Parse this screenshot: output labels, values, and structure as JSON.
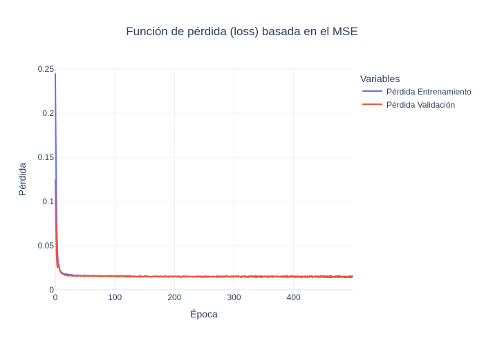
{
  "chart_data": {
    "type": "line",
    "title": "Función de pérdida (loss) basada en el MSE",
    "xlabel": "Época",
    "ylabel": "Pérdida",
    "xlim": [
      0,
      499
    ],
    "ylim": [
      0,
      0.25
    ],
    "xticks": [
      0,
      100,
      200,
      300,
      400
    ],
    "yticks": [
      0,
      0.05,
      0.1,
      0.15,
      0.2,
      0.25
    ],
    "ytick_labels": [
      "0",
      "0.05",
      "0.1",
      "0.15",
      "0.2",
      "0.25"
    ],
    "grid": true,
    "legend": {
      "title": "Variables",
      "placement": "top-right"
    },
    "series": [
      {
        "name": "Pérdida Entrenamiento",
        "color": "#636efa",
        "x": [
          0,
          1,
          2,
          3,
          4,
          5,
          6,
          8,
          10,
          12,
          15,
          20,
          30,
          40,
          60,
          80,
          100,
          130,
          160,
          200,
          250,
          300,
          350,
          400,
          450,
          499
        ],
        "y": [
          0.245,
          0.16,
          0.09,
          0.055,
          0.038,
          0.03,
          0.026,
          0.022,
          0.02,
          0.019,
          0.018,
          0.0172,
          0.0165,
          0.016,
          0.0158,
          0.0156,
          0.0155,
          0.0153,
          0.015,
          0.0149,
          0.0148,
          0.0147,
          0.0146,
          0.0145,
          0.0144,
          0.0143
        ]
      },
      {
        "name": "Pérdida Validación",
        "color": "#ef553b",
        "x": [
          0,
          1,
          2,
          3,
          4,
          5,
          6,
          7,
          8,
          10,
          12,
          15,
          20,
          30,
          40,
          60,
          80,
          100,
          130,
          160,
          200,
          250,
          300,
          350,
          400,
          450,
          499
        ],
        "y": [
          0.125,
          0.075,
          0.04,
          0.027,
          0.025,
          0.028,
          0.029,
          0.024,
          0.021,
          0.019,
          0.018,
          0.017,
          0.0165,
          0.016,
          0.0158,
          0.0155,
          0.0154,
          0.0153,
          0.015,
          0.015,
          0.015,
          0.015,
          0.0152,
          0.0152,
          0.0152,
          0.0152,
          0.0152
        ]
      }
    ]
  }
}
